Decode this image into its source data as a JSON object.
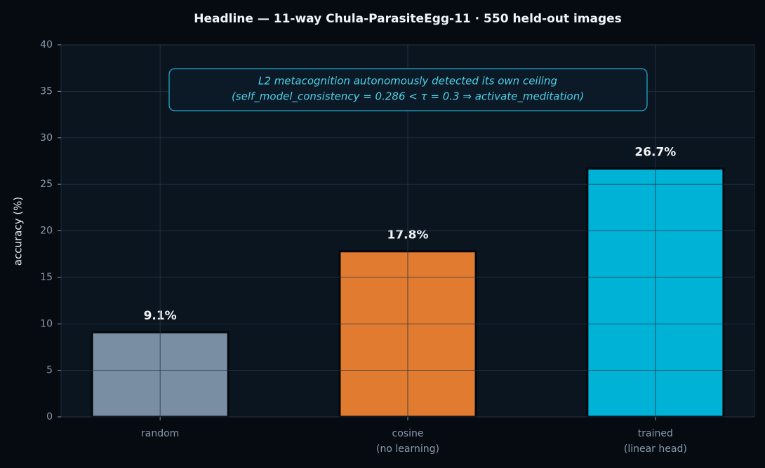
{
  "chart_data": {
    "type": "bar",
    "title": "Headline — 11-way Chula-ParasiteEgg-11 · 550 held-out images",
    "ylabel": "accuracy (%)",
    "categories": [
      "random",
      "cosine\n(no learning)",
      "trained\n(linear head)"
    ],
    "values": [
      9.1,
      17.8,
      26.7
    ],
    "value_labels": [
      "9.1%",
      "17.8%",
      "26.7%"
    ],
    "colors": [
      "#7a8ea3",
      "#e07b30",
      "#00b2d6"
    ],
    "annotation": [
      "L2 metacognition autonomously detected its own ceiling",
      "(self_model_consistency = 0.286 < τ = 0.3 ⇒ activate_meditation)"
    ],
    "ylim": [
      0,
      40
    ],
    "yticks": [
      0,
      5,
      10,
      15,
      20,
      25,
      30,
      35,
      40
    ],
    "grid": true
  }
}
